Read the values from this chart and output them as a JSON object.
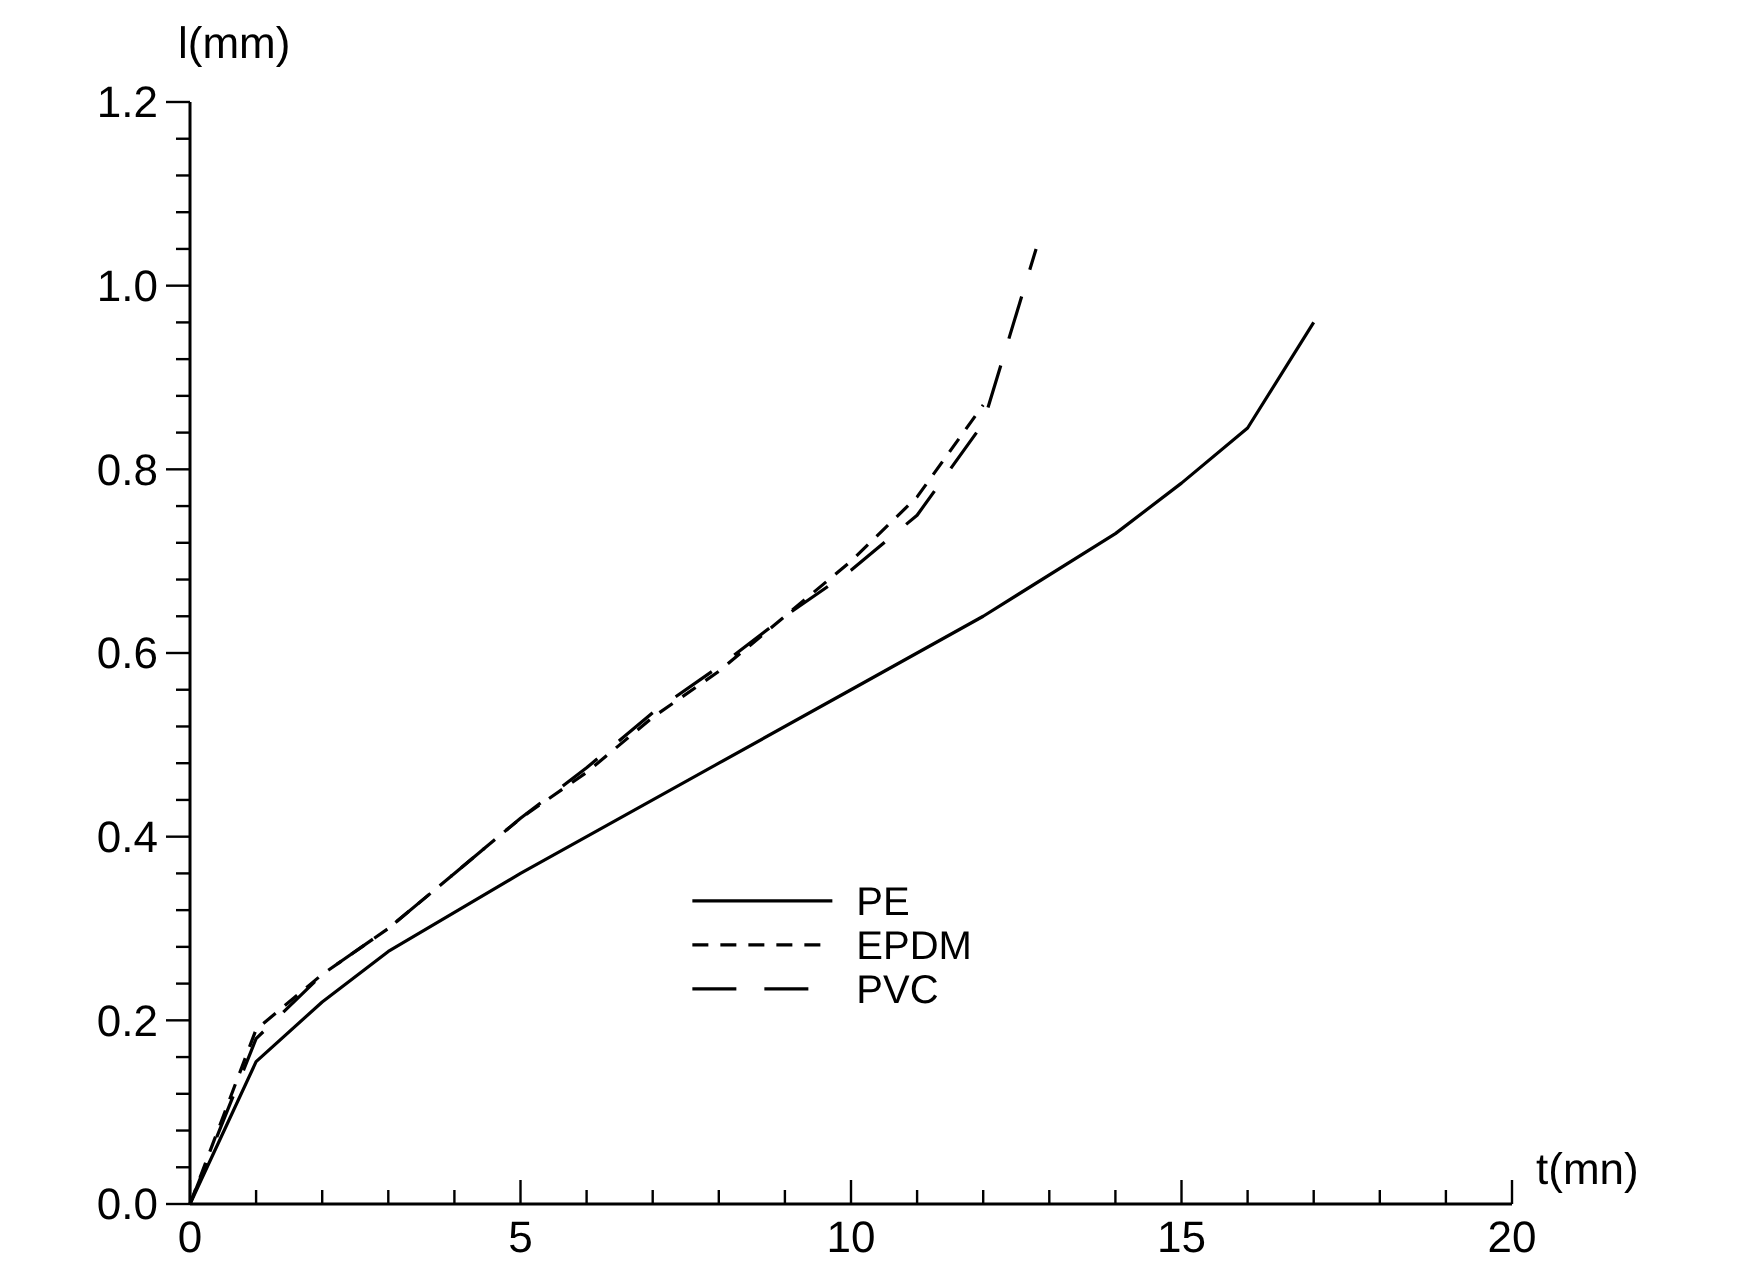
{
  "chart_data": {
    "type": "line",
    "xlabel": "t(mn)",
    "ylabel": "l(mm)",
    "xlim": [
      0,
      20
    ],
    "ylim": [
      0,
      1.2
    ],
    "xticks": [
      0,
      {
        "value": 1,
        "label": null
      },
      {
        "value": 2,
        "label": null
      },
      {
        "value": 3,
        "label": null
      },
      {
        "value": 4,
        "label": null
      },
      5,
      {
        "value": 6,
        "label": null
      },
      {
        "value": 7,
        "label": null
      },
      {
        "value": 8,
        "label": null
      },
      {
        "value": 9,
        "label": null
      },
      10,
      {
        "value": 11,
        "label": null
      },
      {
        "value": 12,
        "label": null
      },
      {
        "value": 13,
        "label": null
      },
      {
        "value": 14,
        "label": null
      },
      15,
      {
        "value": 16,
        "label": null
      },
      {
        "value": 17,
        "label": null
      },
      {
        "value": 18,
        "label": null
      },
      {
        "value": 19,
        "label": null
      },
      20
    ],
    "yticks": [
      {
        "value": 0,
        "label": "0.0"
      },
      {
        "value": 0.04,
        "label": null
      },
      {
        "value": 0.08,
        "label": null
      },
      {
        "value": 0.12,
        "label": null
      },
      {
        "value": 0.16,
        "label": null
      },
      {
        "value": 0.2,
        "label": "0.2"
      },
      {
        "value": 0.24,
        "label": null
      },
      {
        "value": 0.28,
        "label": null
      },
      {
        "value": 0.32,
        "label": null
      },
      {
        "value": 0.36,
        "label": null
      },
      {
        "value": 0.4,
        "label": "0.4"
      },
      {
        "value": 0.44,
        "label": null
      },
      {
        "value": 0.48,
        "label": null
      },
      {
        "value": 0.52,
        "label": null
      },
      {
        "value": 0.56,
        "label": null
      },
      {
        "value": 0.6,
        "label": "0.6"
      },
      {
        "value": 0.64,
        "label": null
      },
      {
        "value": 0.68,
        "label": null
      },
      {
        "value": 0.72,
        "label": null
      },
      {
        "value": 0.76,
        "label": null
      },
      {
        "value": 0.8,
        "label": "0.8"
      },
      {
        "value": 0.84,
        "label": null
      },
      {
        "value": 0.88,
        "label": null
      },
      {
        "value": 0.92,
        "label": null
      },
      {
        "value": 0.96,
        "label": null
      },
      {
        "value": 1.0,
        "label": "1.0"
      },
      {
        "value": 1.04,
        "label": null
      },
      {
        "value": 1.08,
        "label": null
      },
      {
        "value": 1.12,
        "label": null
      },
      {
        "value": 1.16,
        "label": null
      },
      {
        "value": 1.2,
        "label": "1.2"
      }
    ],
    "grid": false,
    "legend": "bottom",
    "marker": "none",
    "series": [
      {
        "name": "PE",
        "color": "#000000",
        "line_style": "solid",
        "x": [
          0,
          1,
          2,
          3,
          5,
          8,
          10,
          12,
          14,
          15,
          16,
          17
        ],
        "values": [
          0,
          0.155,
          0.22,
          0.275,
          0.36,
          0.48,
          0.56,
          0.64,
          0.73,
          0.785,
          0.845,
          0.96
        ]
      },
      {
        "name": "EPDM",
        "color": "#000000",
        "line_style": "dashed",
        "x": [
          0,
          1,
          2,
          3,
          4,
          5,
          6,
          7,
          8,
          9,
          10,
          11,
          12
        ],
        "values": [
          0,
          0.19,
          0.25,
          0.3,
          0.36,
          0.42,
          0.47,
          0.53,
          0.58,
          0.64,
          0.7,
          0.77,
          0.87
        ]
      },
      {
        "name": "PVC",
        "color": "#000000",
        "line_style": "dashed",
        "x": [
          0,
          1,
          2,
          3,
          4,
          5,
          6,
          7,
          8,
          9,
          10,
          11,
          12,
          12.8
        ],
        "values": [
          0,
          0.18,
          0.25,
          0.3,
          0.36,
          0.42,
          0.475,
          0.535,
          0.585,
          0.64,
          0.69,
          0.75,
          0.85,
          1.04
        ]
      }
    ]
  }
}
